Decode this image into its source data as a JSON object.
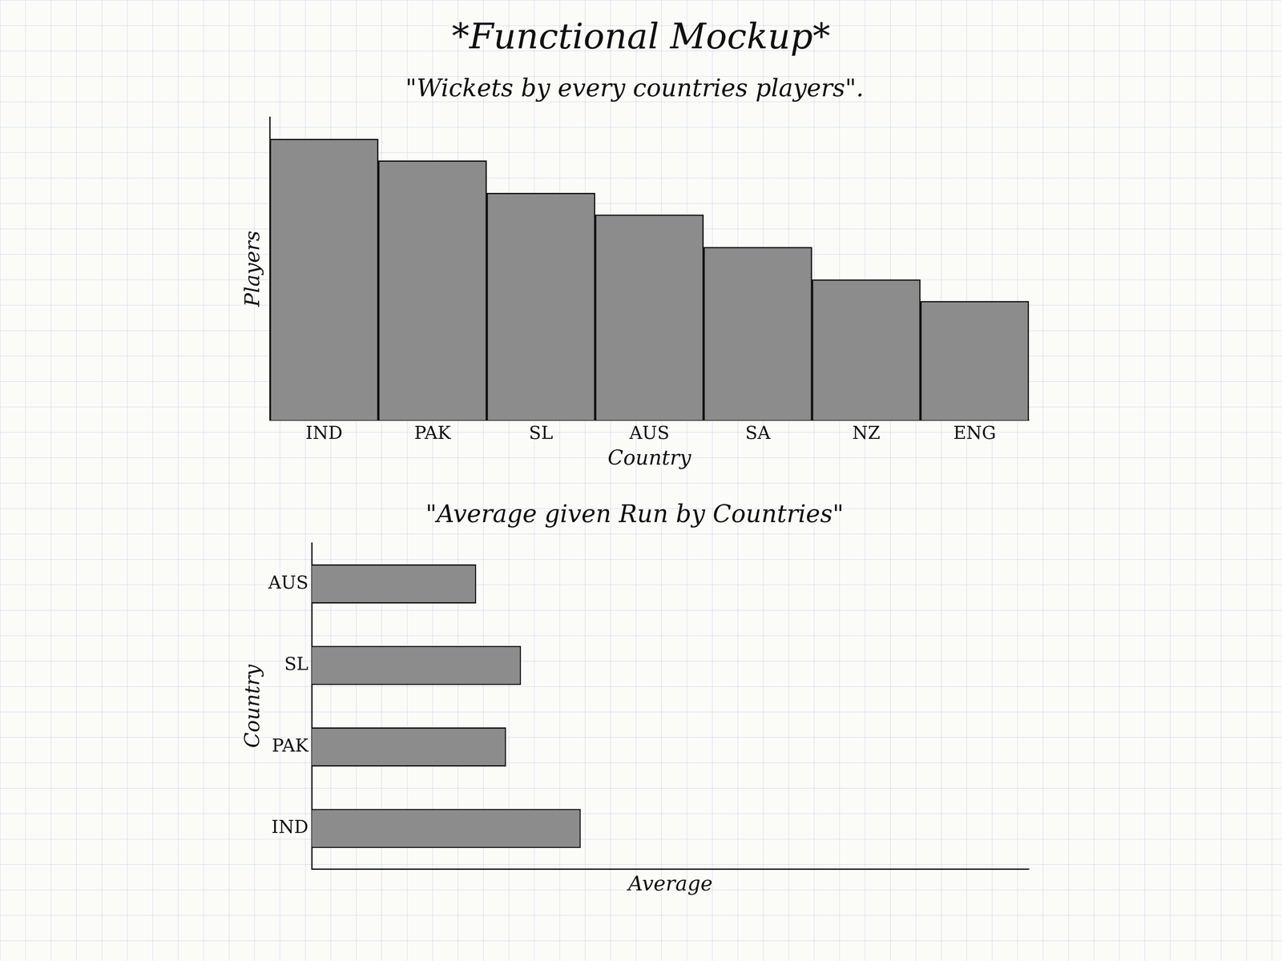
{
  "title": "*Functional Mockup*",
  "chart_data": [
    {
      "type": "bar",
      "title": "\"Wickets by every countries players\".",
      "categories": [
        "IND",
        "PAK",
        "SL",
        "AUS",
        "SA",
        "NZ",
        "ENG"
      ],
      "values": [
        13,
        12,
        10.5,
        9.5,
        8,
        6.5,
        5.5
      ],
      "color": "#8c8c8c",
      "x_label": "Country",
      "y_label": "Players",
      "ylim": [
        0,
        14
      ],
      "grid": false,
      "tick_labels": "x"
    },
    {
      "type": "bar",
      "title": "\"Average given Run by Countries\"",
      "orientation": "horizontal",
      "categories": [
        "AUS",
        "SL",
        "PAK",
        "IND"
      ],
      "values": [
        5.5,
        7,
        6.5,
        9
      ],
      "color": "#8c8c8c",
      "x_label": "Average",
      "y_label": "Country",
      "xlim": [
        0,
        24
      ],
      "grid": false,
      "tick_labels": "y"
    }
  ]
}
